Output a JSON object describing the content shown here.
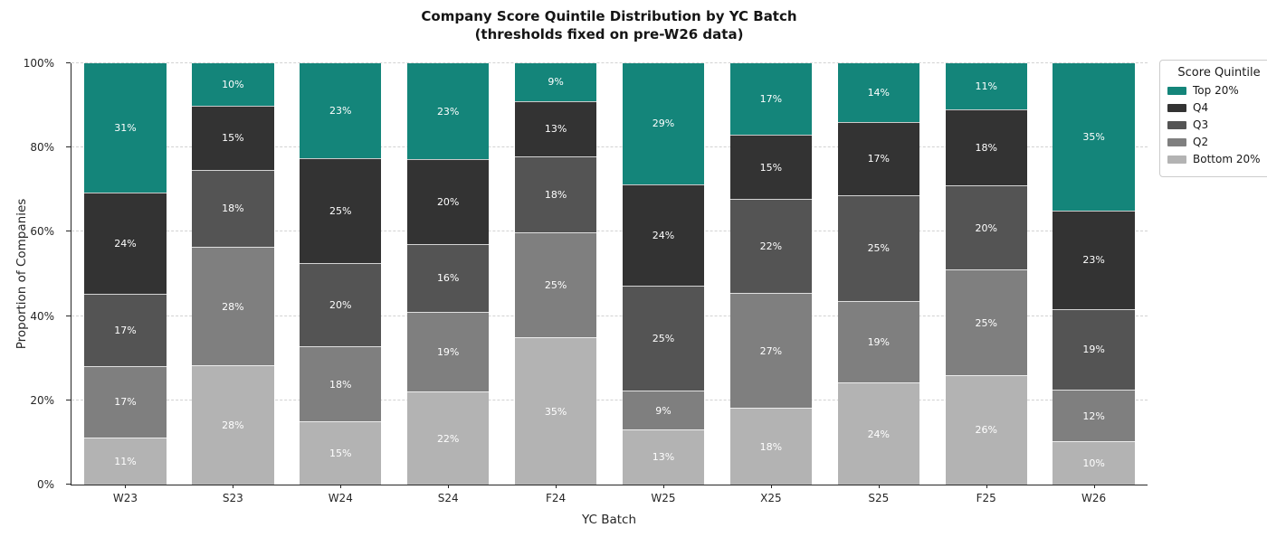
{
  "title": {
    "line1": "Company Score Quintile Distribution by YC Batch",
    "line2": "(thresholds fixed on pre-W26 data)"
  },
  "axes": {
    "ylabel": "Proportion of Companies",
    "xlabel": "YC Batch"
  },
  "legend": {
    "title": "Score Quintile"
  },
  "chart_data": {
    "type": "bar",
    "stacked": true,
    "orientation": "vertical",
    "title": "Company Score Quintile Distribution by YC Batch (thresholds fixed on pre-W26 data)",
    "xlabel": "YC Batch",
    "ylabel": "Proportion of Companies",
    "categories": [
      "W23",
      "S23",
      "W24",
      "S24",
      "F24",
      "W25",
      "X25",
      "S25",
      "F25",
      "W26"
    ],
    "series": [
      {
        "name": "Bottom 20%",
        "color": "#b3b3b3",
        "values": [
          11,
          28,
          15,
          22,
          35,
          13,
          18,
          24,
          26,
          10
        ]
      },
      {
        "name": "Q2",
        "color": "#7f7f7f",
        "values": [
          17,
          28,
          18,
          19,
          25,
          9,
          27,
          19,
          25,
          12
        ]
      },
      {
        "name": "Q3",
        "color": "#545454",
        "values": [
          17,
          18,
          20,
          16,
          18,
          25,
          22,
          25,
          20,
          19
        ]
      },
      {
        "name": "Q4",
        "color": "#333333",
        "values": [
          24,
          15,
          25,
          20,
          13,
          24,
          15,
          17,
          18,
          23
        ]
      },
      {
        "name": "Top 20%",
        "color": "#14857a",
        "values": [
          31,
          10,
          23,
          23,
          9,
          29,
          17,
          14,
          11,
          35
        ]
      }
    ],
    "series_draw_order_bottom_to_top": [
      "Bottom 20%",
      "Q2",
      "Q3",
      "Q4",
      "Top 20%"
    ],
    "bar_label_format": "{value}%",
    "ylim": [
      0,
      100
    ],
    "yticks": [
      0,
      20,
      40,
      60,
      80,
      100
    ],
    "ytick_labels": [
      "0%",
      "20%",
      "40%",
      "60%",
      "80%",
      "100%"
    ],
    "grid": "horizontal dashed",
    "legend_title": "Score Quintile",
    "legend_position": "outside upper right",
    "legend_order_top_to_bottom": [
      "Top 20%",
      "Q4",
      "Q3",
      "Q2",
      "Bottom 20%"
    ]
  }
}
